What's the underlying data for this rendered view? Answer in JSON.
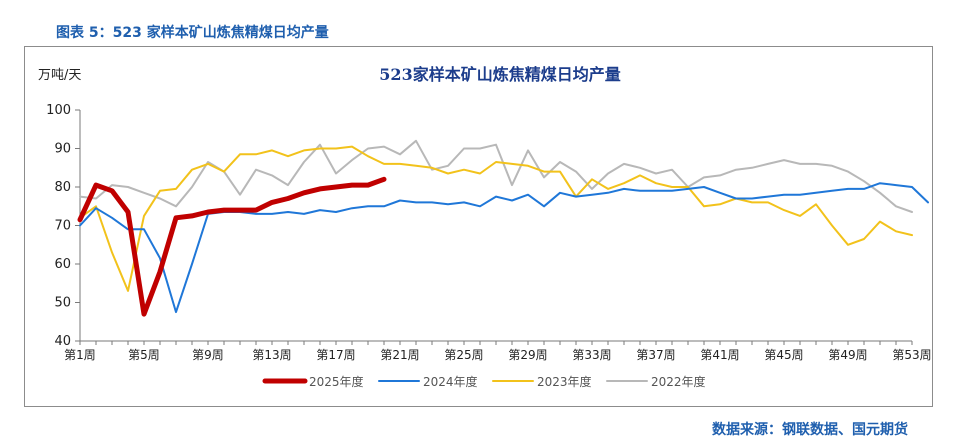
{
  "caption": "图表 5：523 家样本矿山炼焦精煤日均产量",
  "source": "数据来源：钢联数据、国元期货",
  "chart_data": {
    "type": "line",
    "title": "523家样本矿山炼焦精煤日均产量",
    "ylabel": "万吨/天",
    "xlabel": "",
    "ylim": [
      40,
      100
    ],
    "yticks": [
      40,
      50,
      60,
      70,
      80,
      90,
      100
    ],
    "xlim": [
      1,
      53
    ],
    "xticks": [
      {
        "x": 1,
        "label": "第1周"
      },
      {
        "x": 5,
        "label": "第5周"
      },
      {
        "x": 9,
        "label": "第9周"
      },
      {
        "x": 13,
        "label": "第13周"
      },
      {
        "x": 17,
        "label": "第17周"
      },
      {
        "x": 21,
        "label": "第21周"
      },
      {
        "x": 25,
        "label": "第25周"
      },
      {
        "x": 29,
        "label": "第29周"
      },
      {
        "x": 33,
        "label": "第33周"
      },
      {
        "x": 37,
        "label": "第37周"
      },
      {
        "x": 41,
        "label": "第41周"
      },
      {
        "x": 45,
        "label": "第45周"
      },
      {
        "x": 49,
        "label": "第49周"
      },
      {
        "x": 53,
        "label": "第53周"
      }
    ],
    "grid": false,
    "legend_position": "bottom",
    "series": [
      {
        "name": "2022年度",
        "color": "#b8b8b8",
        "width": 2,
        "values": [
          77.5,
          77.0,
          80.5,
          80.0,
          78.5,
          77.0,
          75.0,
          80.0,
          86.5,
          84.0,
          78.0,
          84.5,
          83.0,
          80.5,
          86.5,
          91.0,
          83.5,
          87.0,
          90.0,
          90.5,
          88.5,
          92.0,
          84.5,
          85.5,
          90.0,
          90.0,
          91.0,
          80.5,
          89.5,
          82.5,
          86.5,
          84.0,
          79.5,
          83.5,
          86.0,
          85.0,
          83.5,
          84.5,
          80.0,
          82.5,
          83.0,
          84.5,
          85.0,
          86.0,
          87.0,
          86.0,
          86.0,
          85.5,
          84.0,
          81.5,
          78.5,
          75.0,
          73.5
        ]
      },
      {
        "name": "2023年度",
        "color": "#f2c21b",
        "width": 2,
        "values": [
          72.0,
          75.0,
          63.0,
          53.0,
          72.5,
          79.0,
          79.5,
          84.5,
          86.0,
          84.0,
          88.5,
          88.5,
          89.5,
          88.0,
          89.5,
          90.0,
          90.0,
          90.5,
          88.0,
          86.0,
          86.0,
          85.5,
          85.0,
          83.5,
          84.5,
          83.5,
          86.5,
          86.0,
          85.5,
          84.0,
          84.0,
          77.5,
          82.0,
          79.5,
          81.0,
          83.0,
          81.0,
          80.0,
          80.0,
          75.0,
          75.5,
          77.0,
          76.0,
          76.0,
          74.0,
          72.5,
          75.5,
          70.0,
          65.0,
          66.5,
          71.0,
          68.5,
          67.5
        ]
      },
      {
        "name": "2024年度",
        "color": "#1f77d8",
        "width": 2,
        "values": [
          70.0,
          74.5,
          72.0,
          69.0,
          69.0,
          61.5,
          47.5,
          60.0,
          73.0,
          73.5,
          73.5,
          73.0,
          73.0,
          73.5,
          73.0,
          74.0,
          73.5,
          74.5,
          75.0,
          75.0,
          76.5,
          76.0,
          76.0,
          75.5,
          76.0,
          75.0,
          77.5,
          76.5,
          78.0,
          75.0,
          78.5,
          77.5,
          78.0,
          78.5,
          79.5,
          79.0,
          79.0,
          79.0,
          79.5,
          80.0,
          78.5,
          77.0,
          77.0,
          77.5,
          78.0,
          78.0,
          78.5,
          79.0,
          79.5,
          79.5,
          81.0,
          80.5,
          80.0,
          76.0
        ]
      },
      {
        "name": "2025年度",
        "color": "#c00000",
        "width": 5,
        "values": [
          71.5,
          80.5,
          79.0,
          73.5,
          47.0,
          58.0,
          72.0,
          72.5,
          73.5,
          74.0,
          74.0,
          74.0,
          76.0,
          77.0,
          78.5,
          79.5,
          80.0,
          80.5,
          80.5,
          82.0
        ]
      }
    ],
    "legend_order": [
      "2025年度",
      "2024年度",
      "2023年度",
      "2022年度"
    ]
  }
}
